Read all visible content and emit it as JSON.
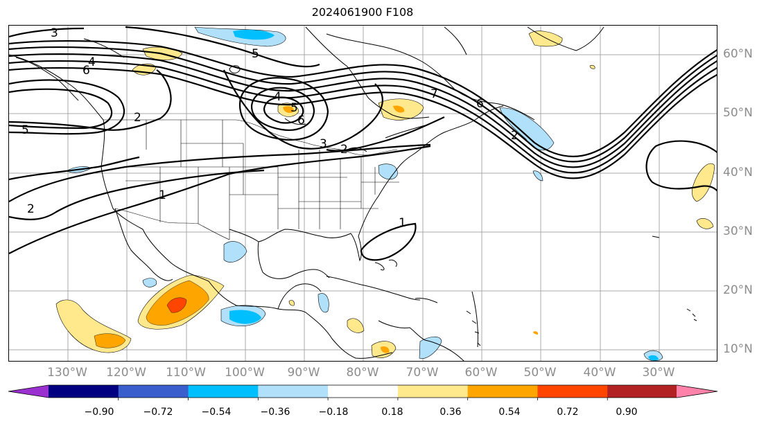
{
  "title": "2024061900 F108",
  "longitude_labels": [
    "130°W",
    "120°W",
    "110°W",
    "100°W",
    "90°W",
    "80°W",
    "70°W",
    "60°W",
    "50°W",
    "40°W",
    "30°W"
  ],
  "latitude_labels": [
    "60°N",
    "50°N",
    "40°N",
    "30°N",
    "20°N",
    "10°N"
  ],
  "contour_labels": [
    "3",
    "4",
    "6",
    "5",
    "2",
    "5",
    "4",
    "5",
    "6",
    "3",
    "2",
    "1",
    "2",
    "1",
    "7",
    "6",
    "2"
  ],
  "colorbar": {
    "tick_labels": [
      "−0.90",
      "−0.72",
      "−0.54",
      "−0.36",
      "−0.18",
      "0.18",
      "0.36",
      "0.54",
      "0.72",
      "0.90"
    ],
    "colors": [
      "#9b30d0",
      "#000080",
      "#3a5fcd",
      "#00bfff",
      "#b0e0fa",
      "#ffffff",
      "#ffe98c",
      "#ffa500",
      "#ff4500",
      "#b22222",
      "#ff82ab"
    ]
  },
  "shading_colors": {
    "neg_light": "#b0e0fa",
    "neg_mid": "#00bfff",
    "pos_light": "#ffe98c",
    "pos_mid": "#ffa500",
    "pos_strong": "#ff4500"
  }
}
